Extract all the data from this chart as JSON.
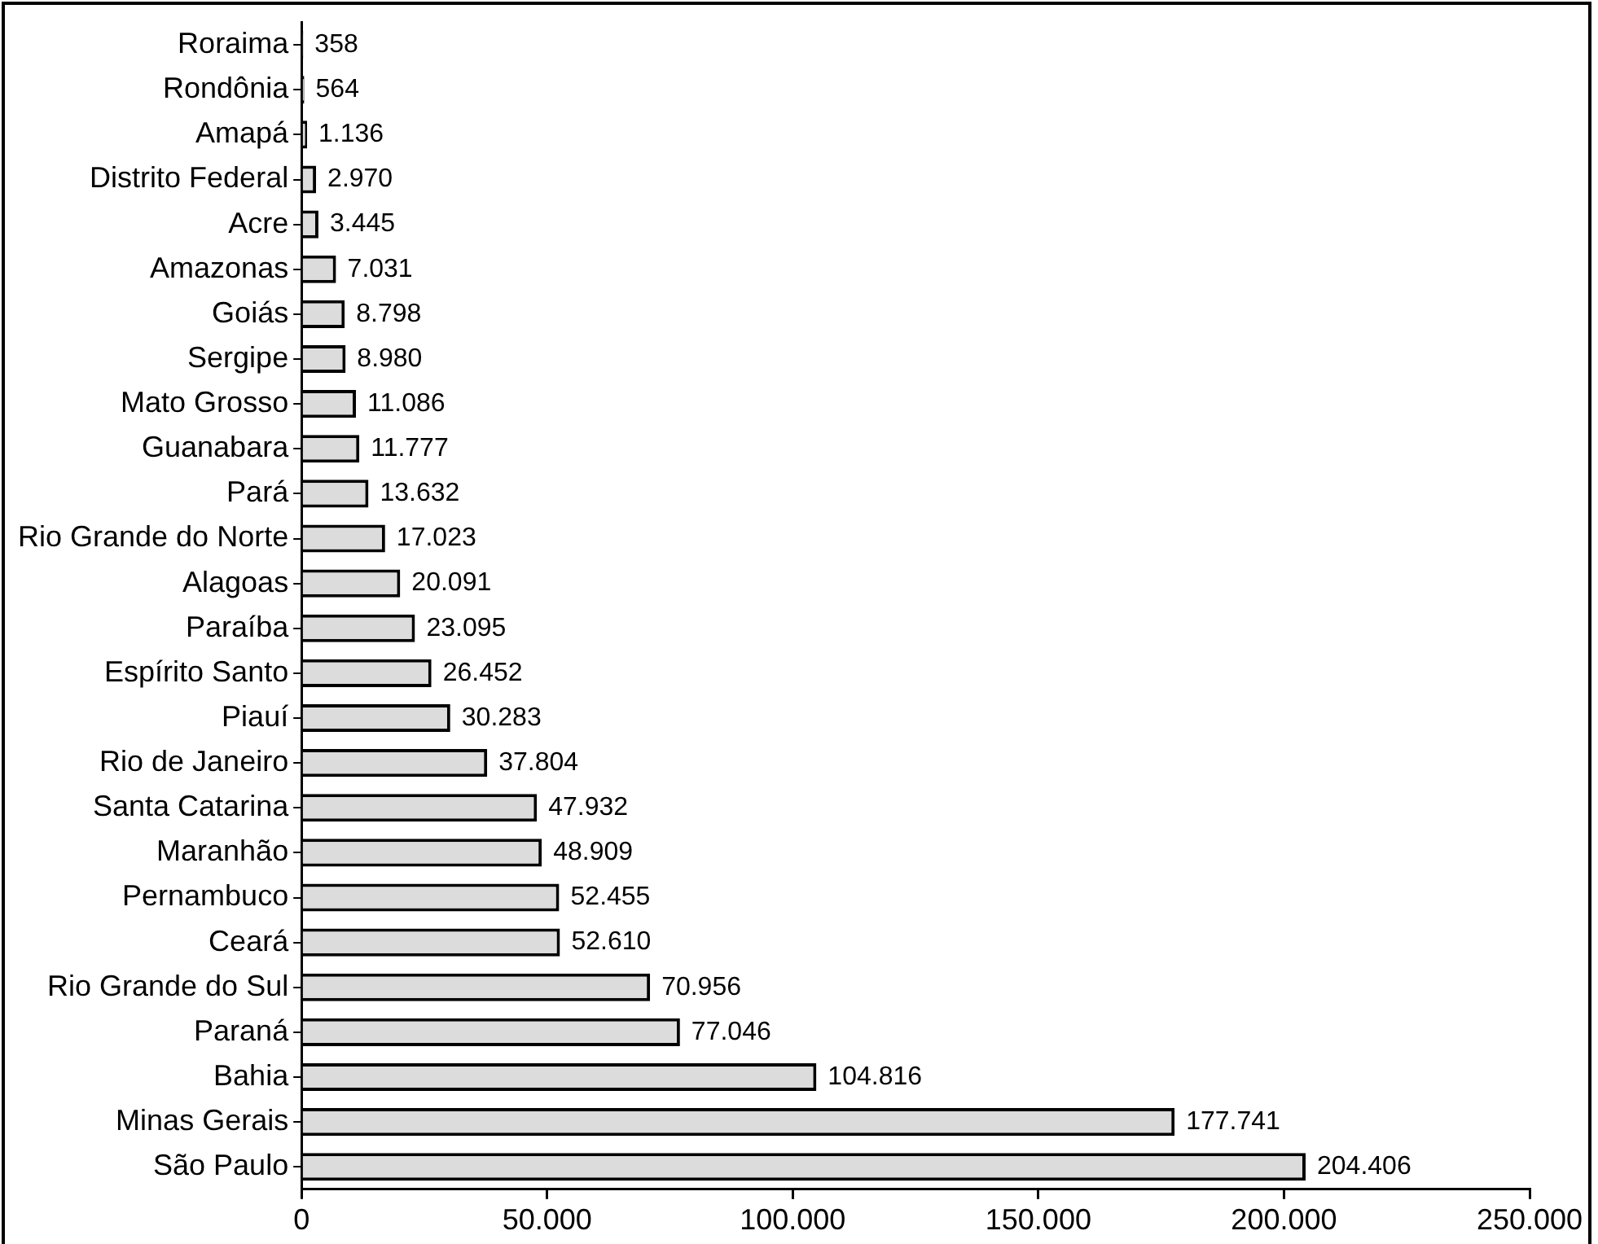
{
  "chart_data": {
    "type": "bar",
    "orientation": "horizontal",
    "categories": [
      "Roraima",
      "Rondônia",
      "Amapá",
      "Distrito Federal",
      "Acre",
      "Amazonas",
      "Goiás",
      "Sergipe",
      "Mato Grosso",
      "Guanabara",
      "Pará",
      "Rio Grande do Norte",
      "Alagoas",
      "Paraíba",
      "Espírito Santo",
      "Piauí",
      "Rio de Janeiro",
      "Santa Catarina",
      "Maranhão",
      "Pernambuco",
      "Ceará",
      "Rio Grande do Sul",
      "Paraná",
      "Bahia",
      "Minas Gerais",
      "São Paulo"
    ],
    "values": [
      358,
      564,
      1136,
      2970,
      3445,
      7031,
      8798,
      8980,
      11086,
      11777,
      13632,
      17023,
      20091,
      23095,
      26452,
      30283,
      37804,
      47932,
      48909,
      52455,
      52610,
      70956,
      77046,
      104816,
      177741,
      204406
    ],
    "value_labels": [
      "358",
      "564",
      "1.136",
      "2.970",
      "3.445",
      "7.031",
      "8.798",
      "8.980",
      "11.086",
      "11.777",
      "13.632",
      "17.023",
      "20.091",
      "23.095",
      "26.452",
      "30.283",
      "37.804",
      "47.932",
      "48.909",
      "52.455",
      "52.610",
      "70.956",
      "77.046",
      "104.816",
      "177.741",
      "204.406"
    ],
    "color": "#dcdcdc",
    "xlim": [
      0,
      250000
    ],
    "xticks": [
      0,
      {
        "value": 50000,
        "label": "50.000"
      },
      {
        "value": 100000,
        "label": "100.000"
      },
      {
        "value": 150000,
        "label": "150.000"
      },
      {
        "value": 200000,
        "label": "200.000"
      },
      {
        "value": 250000,
        "label": "250.000"
      }
    ],
    "grid": false,
    "legend": false
  }
}
